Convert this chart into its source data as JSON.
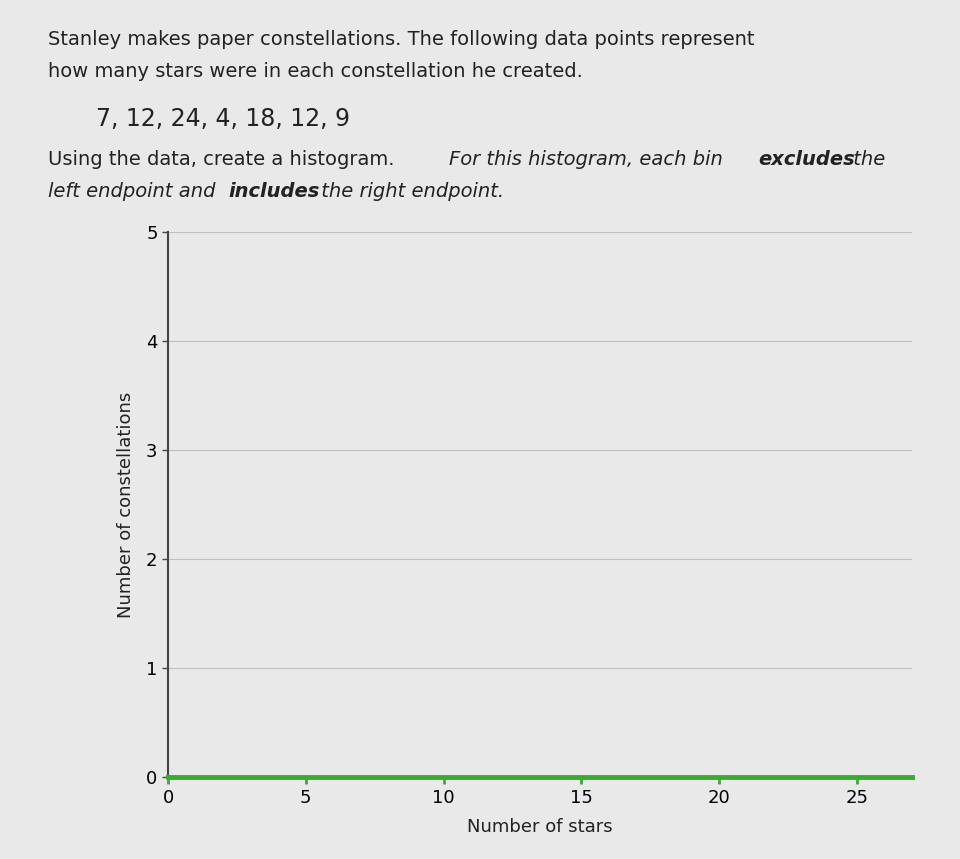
{
  "description_line1": "Stanley makes paper constellations. The following data points represent",
  "description_line2": "how many stars were in each constellation he created.",
  "data_display": "7, 12, 24, 4, 18, 12, 9",
  "xlabel": "Number of stars",
  "ylabel": "Number of constellations",
  "xlim": [
    0,
    27
  ],
  "ylim": [
    0,
    5
  ],
  "xticks": [
    0,
    5,
    10,
    15,
    20,
    25
  ],
  "yticks": [
    0,
    1,
    2,
    3,
    4,
    5
  ],
  "background_color": "#e9e9e9",
  "plot_bg_color": "#e9e9e9",
  "grid_color": "#c0c0c0",
  "axis_color": "#444444",
  "xaxis_color": "#3aaa35",
  "text_color": "#222222",
  "desc_fontsize": 14,
  "data_fontsize": 17,
  "inst_fontsize": 14,
  "axis_label_fontsize": 13,
  "tick_fontsize": 13
}
